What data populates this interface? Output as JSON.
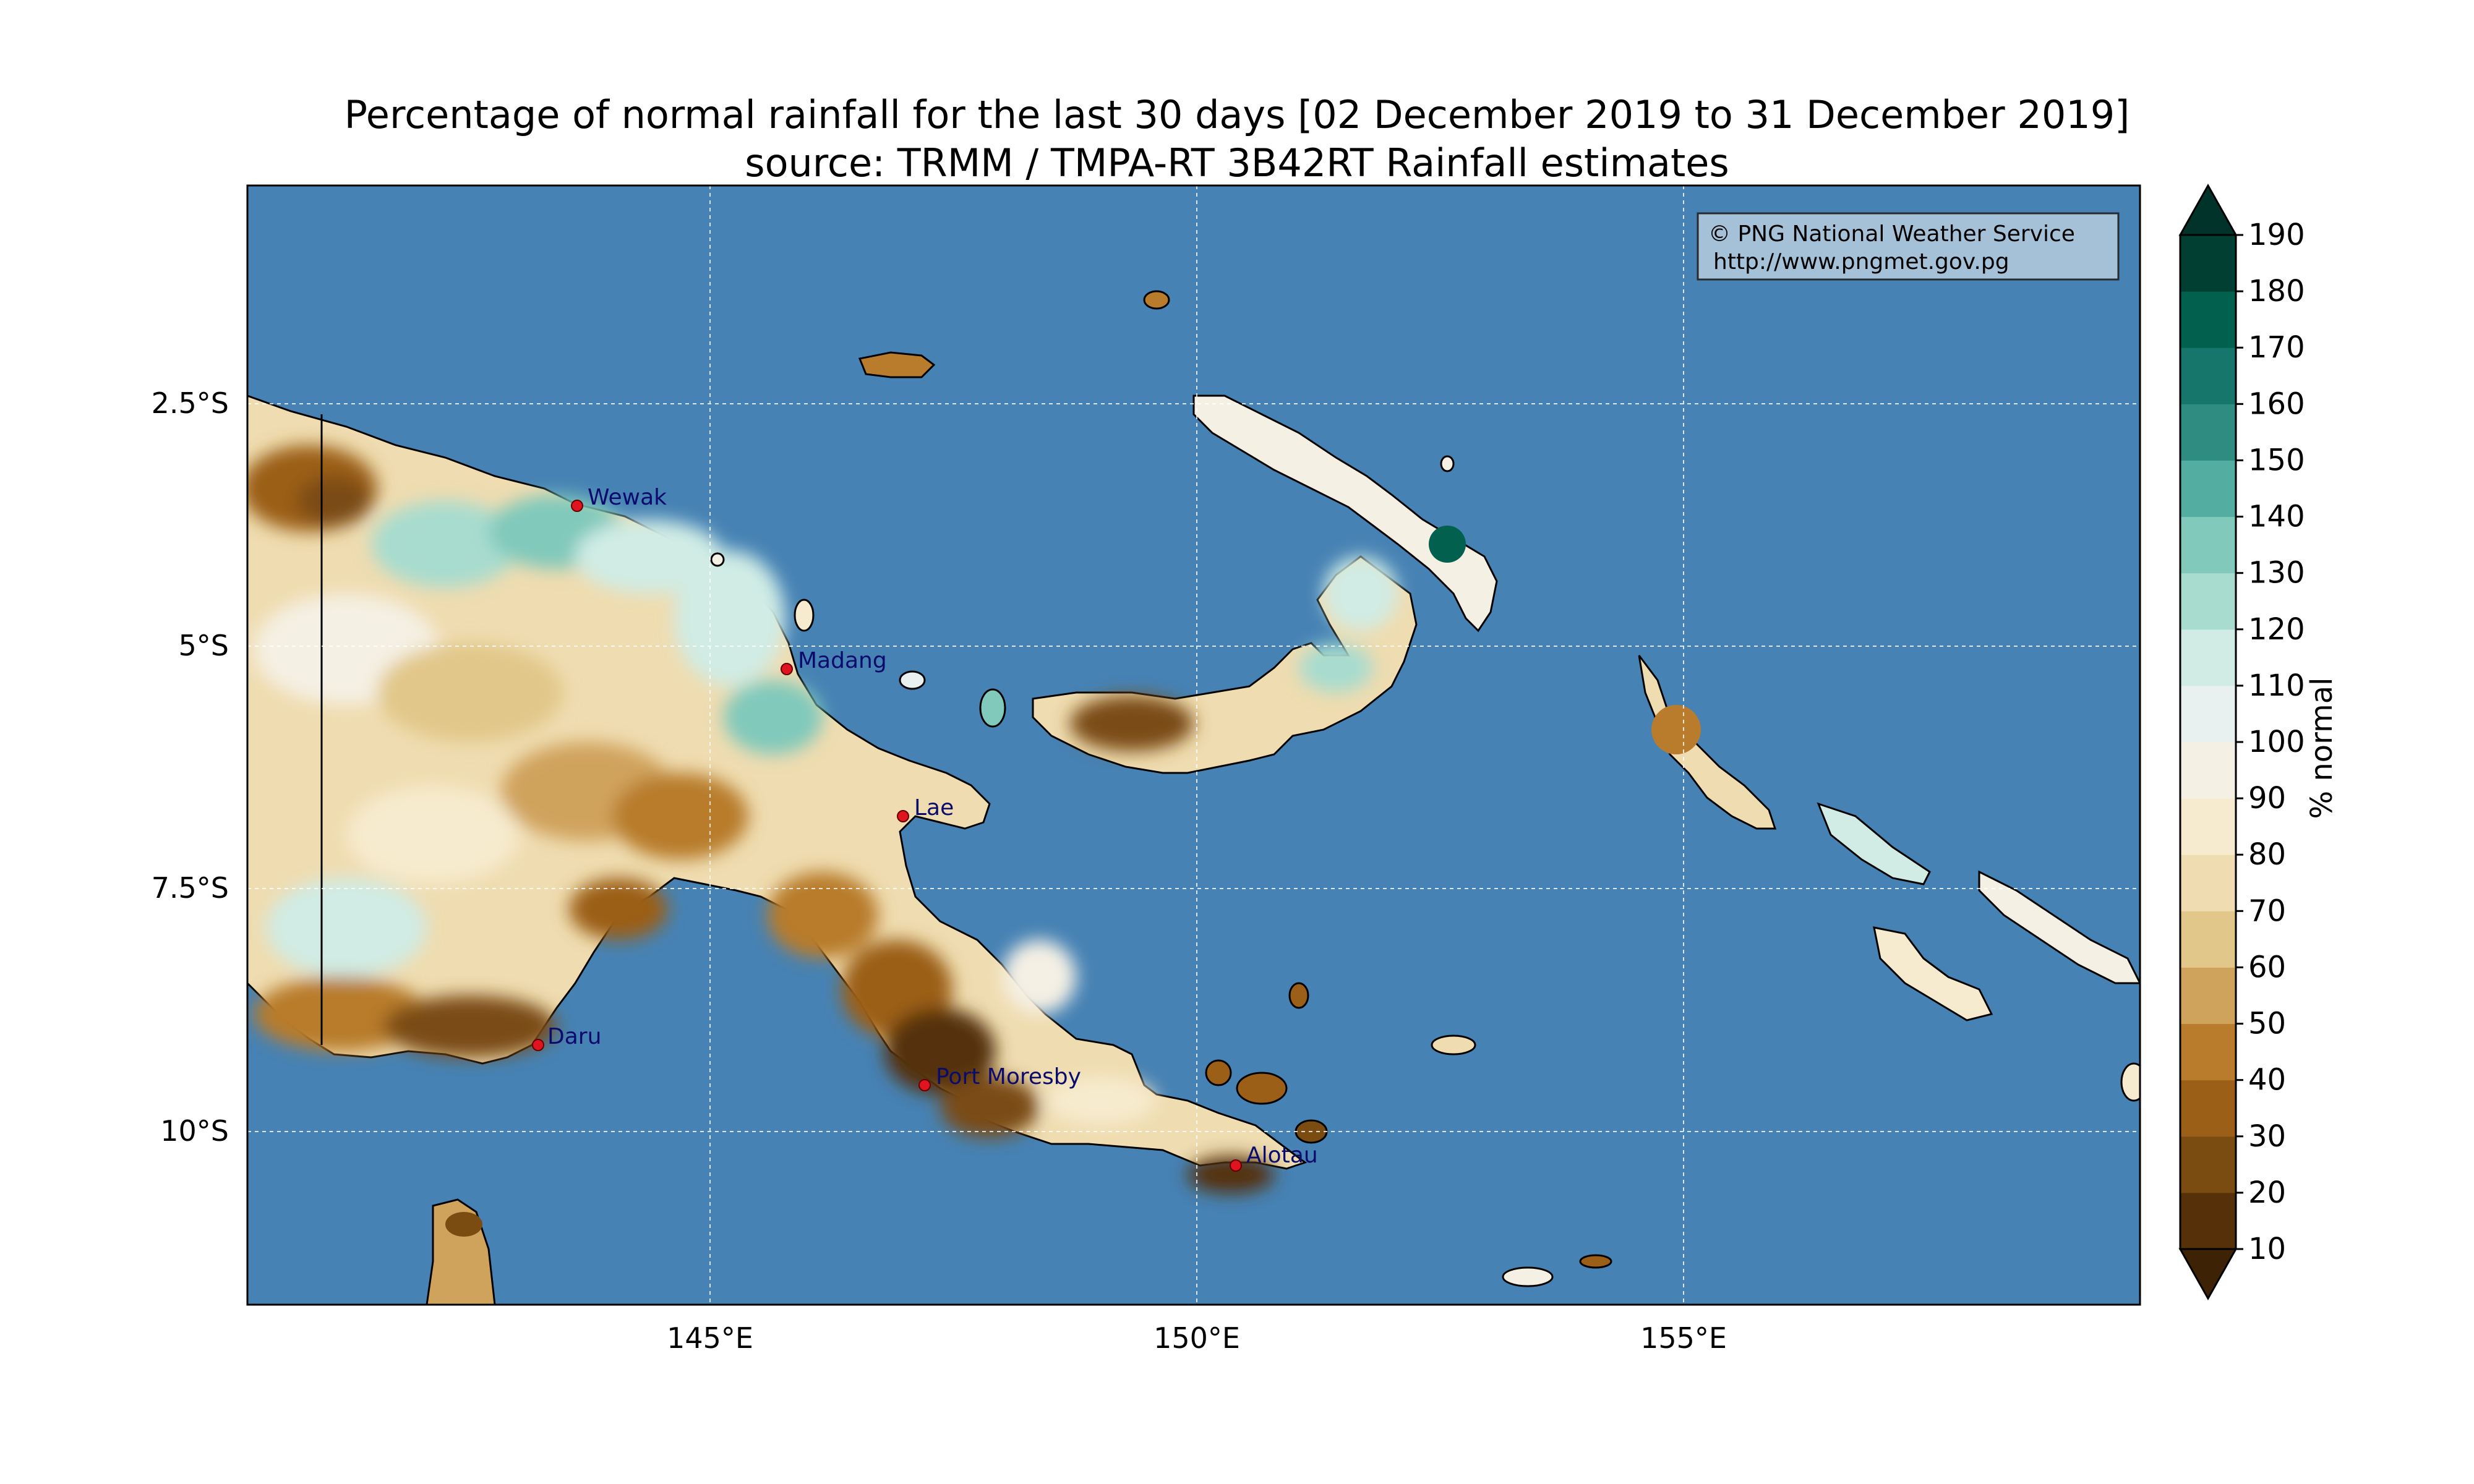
{
  "title": {
    "line1": "Percentage of normal rainfall for the last 30 days [02 December 2019 to 31 December 2019]",
    "line2": "source: TRMM / TMPA-RT 3B42RT Rainfall estimates"
  },
  "credit": {
    "line1": "© PNG National Weather Service",
    "line2": "http://www.pngmet.gov.pg"
  },
  "axes": {
    "x_ticks": [
      "145°E",
      "150°E",
      "155°E"
    ],
    "y_ticks": [
      "2.5°S",
      "5°S",
      "7.5°S",
      "10°S"
    ]
  },
  "colorbar": {
    "label": "% normal",
    "ticks": [
      "10",
      "20",
      "30",
      "40",
      "50",
      "60",
      "70",
      "80",
      "90",
      "100",
      "110",
      "120",
      "130",
      "140",
      "150",
      "160",
      "170",
      "180",
      "190"
    ],
    "colors": [
      "#553009",
      "#7a4c12",
      "#9b5f17",
      "#b87c2c",
      "#d0a35d",
      "#e1c789",
      "#efdcb0",
      "#f6ebce",
      "#f5f0e4",
      "#e8f1ef",
      "#d0ece5",
      "#a8dccf",
      "#80c9bb",
      "#53ada0",
      "#2e8c80",
      "#16766b",
      "#02604f",
      "#023f33"
    ],
    "extend_low": "#3d2206",
    "extend_high": "#01332a"
  },
  "cities": [
    {
      "name": "Wewak"
    },
    {
      "name": "Madang"
    },
    {
      "name": "Lae"
    },
    {
      "name": "Daru"
    },
    {
      "name": "Port Moresby"
    },
    {
      "name": "Alotau"
    }
  ],
  "ocean_color": "#4682b4"
}
